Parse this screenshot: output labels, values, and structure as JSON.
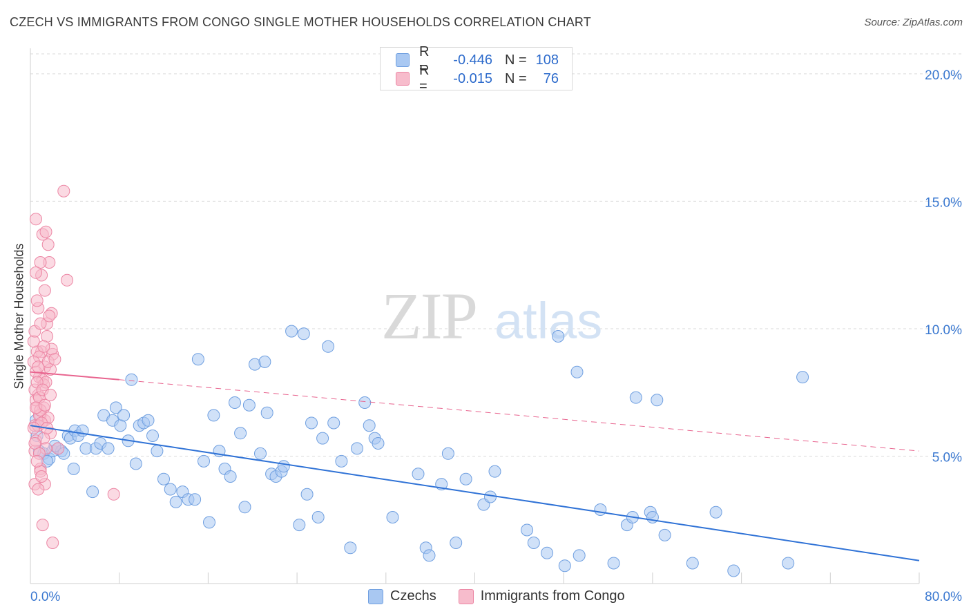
{
  "header": {
    "title": "CZECH VS IMMIGRANTS FROM CONGO SINGLE MOTHER HOUSEHOLDS CORRELATION CHART",
    "source": "Source: ZipAtlas.com"
  },
  "watermark": {
    "zip": "ZIP",
    "atlas": "atlas"
  },
  "legend_top": {
    "rows": [
      {
        "r_label": "R =",
        "r_value": "-0.446",
        "n_label": "N =",
        "n_value": "108",
        "color": "#a9c8f2",
        "border": "#6f9fe0"
      },
      {
        "r_label": "R =",
        "r_value": "-0.015",
        "n_label": "N =",
        "n_value": "76",
        "color": "#f7bccc",
        "border": "#ec86a4"
      }
    ]
  },
  "legend_bottom": [
    {
      "label": "Czechs",
      "color": "#a9c8f2",
      "border": "#6f9fe0"
    },
    {
      "label": "Immigrants from Congo",
      "color": "#f7bccc",
      "border": "#ec86a4"
    }
  ],
  "colors": {
    "blue": "#2f72d6",
    "pink": "#e8638e",
    "axis_text": "#3a78d0",
    "grid": "#d9d9d9"
  },
  "chart_data": {
    "type": "scatter",
    "title": "CZECH VS IMMIGRANTS FROM CONGO SINGLE MOTHER HOUSEHOLDS CORRELATION CHART",
    "xlabel": "",
    "ylabel": "Single Mother Households",
    "xlim": [
      0,
      80
    ],
    "ylim": [
      0,
      21
    ],
    "x_tick_labels": [
      "0.0%",
      "80.0%"
    ],
    "y_ticks": [
      5,
      10,
      15,
      20
    ],
    "y_tick_labels": [
      "5.0%",
      "10.0%",
      "15.0%",
      "20.0%"
    ],
    "grid": true,
    "series": [
      {
        "name": "Czechs",
        "points": [
          [
            0.6,
            5.8
          ],
          [
            0.8,
            5.2
          ],
          [
            1.2,
            5.1
          ],
          [
            1.7,
            4.9
          ],
          [
            2,
            5.2
          ],
          [
            2.5,
            5.3
          ],
          [
            2.8,
            5.2
          ],
          [
            3,
            5.1
          ],
          [
            3.4,
            5.8
          ],
          [
            3.6,
            5.7
          ],
          [
            4,
            6
          ],
          [
            4.3,
            5.8
          ],
          [
            4.7,
            6
          ],
          [
            5,
            5.3
          ],
          [
            5.6,
            3.6
          ],
          [
            5.9,
            5.3
          ],
          [
            6.3,
            5.5
          ],
          [
            6.6,
            6.6
          ],
          [
            7,
            5.3
          ],
          [
            7.4,
            6.4
          ],
          [
            7.7,
            6.9
          ],
          [
            8.1,
            6.2
          ],
          [
            8.4,
            6.6
          ],
          [
            8.8,
            5.6
          ],
          [
            9.1,
            8
          ],
          [
            9.5,
            4.7
          ],
          [
            9.8,
            6.2
          ],
          [
            10.2,
            6.3
          ],
          [
            10.6,
            6.4
          ],
          [
            11,
            5.8
          ],
          [
            11.4,
            5.2
          ],
          [
            12,
            4.1
          ],
          [
            12.6,
            3.7
          ],
          [
            13.1,
            3.2
          ],
          [
            13.7,
            3.6
          ],
          [
            14.2,
            3.3
          ],
          [
            14.8,
            3.3
          ],
          [
            15.1,
            8.8
          ],
          [
            15.6,
            4.8
          ],
          [
            16.1,
            2.4
          ],
          [
            16.5,
            6.6
          ],
          [
            17,
            5.2
          ],
          [
            17.5,
            4.5
          ],
          [
            18,
            4.2
          ],
          [
            18.4,
            7.1
          ],
          [
            18.9,
            5.9
          ],
          [
            19.3,
            3
          ],
          [
            19.7,
            7
          ],
          [
            20.2,
            8.6
          ],
          [
            20.7,
            5.1
          ],
          [
            21.1,
            8.7
          ],
          [
            21.3,
            6.7
          ],
          [
            21.7,
            4.3
          ],
          [
            22.1,
            4.2
          ],
          [
            22.6,
            4.4
          ],
          [
            22.8,
            4.6
          ],
          [
            23.5,
            9.9
          ],
          [
            24.2,
            2.3
          ],
          [
            24.6,
            9.8
          ],
          [
            24.9,
            3.5
          ],
          [
            25.3,
            6.3
          ],
          [
            25.9,
            2.6
          ],
          [
            26.3,
            5.7
          ],
          [
            26.8,
            9.3
          ],
          [
            27.3,
            6.3
          ],
          [
            28,
            4.8
          ],
          [
            28.8,
            1.4
          ],
          [
            29.4,
            5.3
          ],
          [
            30.1,
            7.1
          ],
          [
            30.5,
            6.2
          ],
          [
            31,
            5.7
          ],
          [
            31.3,
            5.5
          ],
          [
            32.6,
            2.6
          ],
          [
            34.9,
            4.3
          ],
          [
            35.6,
            1.4
          ],
          [
            35.9,
            1.1
          ],
          [
            37,
            3.9
          ],
          [
            37.6,
            5.1
          ],
          [
            38.3,
            1.6
          ],
          [
            39.2,
            4.1
          ],
          [
            40.8,
            3.1
          ],
          [
            41.4,
            3.4
          ],
          [
            41.8,
            4.4
          ],
          [
            44.7,
            2.1
          ],
          [
            45.3,
            1.6
          ],
          [
            46.5,
            1.2
          ],
          [
            47.5,
            9.7
          ],
          [
            48.1,
            0.7
          ],
          [
            49.2,
            8.3
          ],
          [
            49.4,
            1.1
          ],
          [
            51.3,
            2.9
          ],
          [
            52.5,
            0.8
          ],
          [
            53.7,
            2.3
          ],
          [
            54.2,
            2.6
          ],
          [
            54.5,
            7.3
          ],
          [
            55.8,
            2.8
          ],
          [
            56,
            2.6
          ],
          [
            56.4,
            7.2
          ],
          [
            57.1,
            1.9
          ],
          [
            59.6,
            0.8
          ],
          [
            61.7,
            2.8
          ],
          [
            63.3,
            0.5
          ],
          [
            68.2,
            0.8
          ],
          [
            69.5,
            8.1
          ],
          [
            0.5,
            6.4
          ],
          [
            1.5,
            4.8
          ],
          [
            3.9,
            4.5
          ],
          [
            2.2,
            5.4
          ]
        ]
      },
      {
        "name": "Immigrants from Congo",
        "points": [
          [
            0.4,
            6.2
          ],
          [
            0.5,
            5.6
          ],
          [
            0.6,
            6.9
          ],
          [
            0.7,
            7.4
          ],
          [
            0.8,
            8.1
          ],
          [
            0.9,
            6.6
          ],
          [
            1,
            9.1
          ],
          [
            1.1,
            8
          ],
          [
            1.2,
            7.8
          ],
          [
            1.3,
            6.4
          ],
          [
            0.4,
            3.9
          ],
          [
            0.9,
            4.5
          ],
          [
            1.7,
            12.6
          ],
          [
            1.6,
            13.3
          ],
          [
            0.5,
            14.3
          ],
          [
            1.1,
            13.7
          ],
          [
            1.9,
            10.6
          ],
          [
            1.3,
            11.5
          ],
          [
            1,
            12.1
          ],
          [
            0.7,
            10.8
          ],
          [
            1.5,
            9.7
          ],
          [
            0.6,
            9.1
          ],
          [
            2,
            9
          ],
          [
            1.3,
            8.5
          ],
          [
            0.8,
            8.9
          ],
          [
            1.8,
            8.4
          ],
          [
            1.4,
            7.9
          ],
          [
            0.4,
            7.6
          ],
          [
            0.5,
            7.2
          ],
          [
            1.2,
            6.9
          ],
          [
            0.8,
            6.6
          ],
          [
            0.7,
            6.2
          ],
          [
            1.6,
            6.5
          ],
          [
            1.8,
            5.9
          ],
          [
            0.4,
            5.2
          ],
          [
            0.9,
            4.4
          ],
          [
            1.3,
            3.9
          ],
          [
            1.1,
            2.3
          ],
          [
            2,
            1.6
          ],
          [
            3,
            15.4
          ],
          [
            3.3,
            11.9
          ],
          [
            7.5,
            3.5
          ],
          [
            0.3,
            8.7
          ],
          [
            0.5,
            8.3
          ],
          [
            0.6,
            7.9
          ],
          [
            0.8,
            7.3
          ],
          [
            0.9,
            6.8
          ],
          [
            1,
            6.3
          ],
          [
            1.2,
            5.7
          ],
          [
            1.4,
            5.3
          ],
          [
            0.3,
            9.5
          ],
          [
            0.4,
            9.9
          ],
          [
            1.5,
            10.2
          ],
          [
            0.6,
            11.1
          ],
          [
            0.9,
            12.6
          ],
          [
            1.7,
            10.5
          ],
          [
            1.9,
            9.2
          ],
          [
            0.7,
            8.5
          ],
          [
            0.5,
            6.9
          ],
          [
            0.3,
            6.1
          ],
          [
            1.1,
            7.6
          ],
          [
            1.3,
            7
          ],
          [
            1.6,
            8.7
          ],
          [
            0.4,
            5.5
          ],
          [
            0.8,
            5.1
          ],
          [
            1.5,
            6.1
          ],
          [
            2.2,
            8.8
          ],
          [
            1.8,
            7.4
          ],
          [
            0.6,
            4.8
          ],
          [
            1,
            4.2
          ],
          [
            0.7,
            3.7
          ],
          [
            2.5,
            5.3
          ],
          [
            1.2,
            9.3
          ],
          [
            0.9,
            10.2
          ],
          [
            0.5,
            12.2
          ],
          [
            1.4,
            13.8
          ]
        ]
      }
    ],
    "trend_lines": [
      {
        "series": "Czechs",
        "x": [
          0,
          80
        ],
        "y": [
          6.2,
          0.9
        ],
        "style": "solid"
      },
      {
        "series": "Immigrants from Congo",
        "x": [
          0,
          8
        ],
        "y": [
          8.3,
          8.0
        ],
        "style": "solid"
      },
      {
        "series": "Immigrants from Congo",
        "x": [
          8,
          80
        ],
        "y": [
          8.0,
          5.2
        ],
        "style": "dashed"
      }
    ]
  }
}
